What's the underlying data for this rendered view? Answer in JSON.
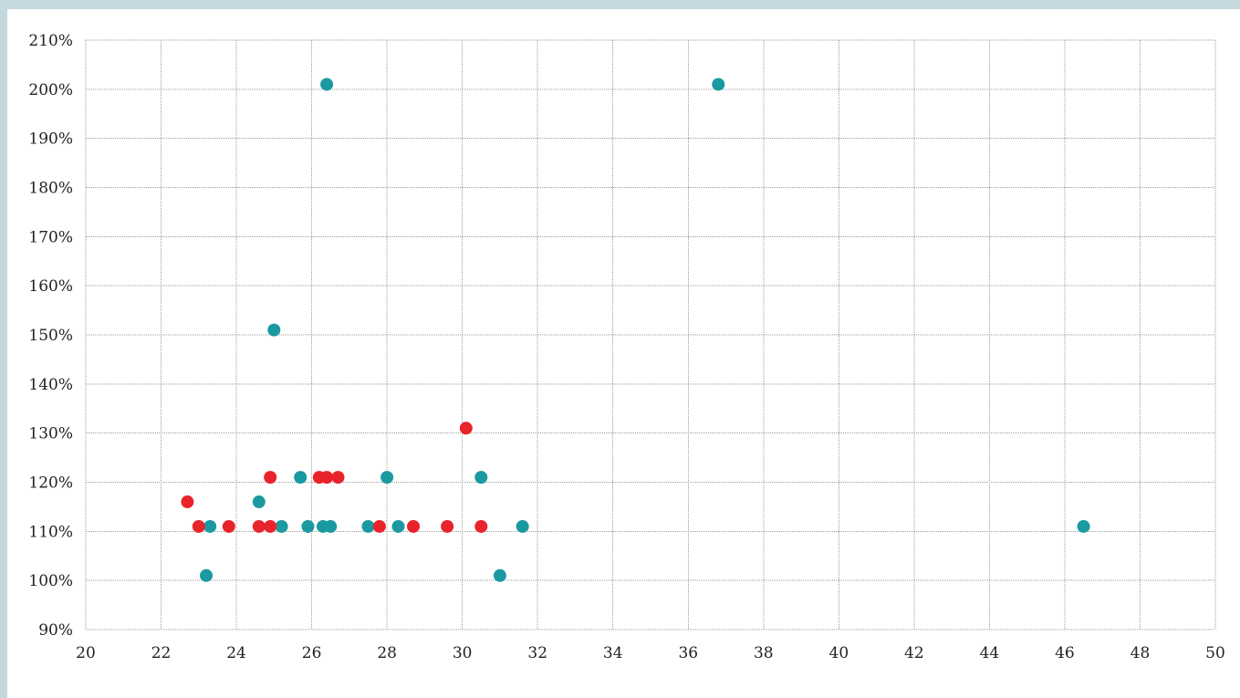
{
  "chart_data": {
    "type": "scatter",
    "title": "",
    "xlabel": "",
    "ylabel": "",
    "xlim": [
      20,
      50
    ],
    "ylim": [
      90,
      210
    ],
    "grid": true,
    "legend": "none",
    "x_ticks": [
      "20",
      "22",
      "24",
      "26",
      "28",
      "30",
      "32",
      "34",
      "36",
      "38",
      "40",
      "42",
      "44",
      "46",
      "48",
      "50"
    ],
    "y_ticks": [
      "90%",
      "100%",
      "110%",
      "120%",
      "130%",
      "140%",
      "150%",
      "160%",
      "170%",
      "180%",
      "190%",
      "200%",
      "210%"
    ],
    "series": [
      {
        "color": "#1a9aa0",
        "points": [
          [
            26.4,
            201
          ],
          [
            36.8,
            201
          ],
          [
            25.0,
            151
          ],
          [
            25.7,
            121
          ],
          [
            28.0,
            121
          ],
          [
            30.5,
            121
          ],
          [
            24.6,
            116
          ],
          [
            23.3,
            111
          ],
          [
            25.2,
            111
          ],
          [
            25.9,
            111
          ],
          [
            26.3,
            111
          ],
          [
            26.5,
            111
          ],
          [
            27.5,
            111
          ],
          [
            28.3,
            111
          ],
          [
            31.6,
            111
          ],
          [
            46.5,
            111
          ],
          [
            23.2,
            101
          ],
          [
            31.0,
            101
          ]
        ]
      },
      {
        "color": "#e8232b",
        "points": [
          [
            30.1,
            131
          ],
          [
            24.9,
            121
          ],
          [
            26.2,
            121
          ],
          [
            26.4,
            121
          ],
          [
            26.7,
            121
          ],
          [
            22.7,
            116
          ],
          [
            23.0,
            111
          ],
          [
            23.8,
            111
          ],
          [
            24.6,
            111
          ],
          [
            24.9,
            111
          ],
          [
            27.8,
            111
          ],
          [
            28.7,
            111
          ],
          [
            29.6,
            111
          ],
          [
            30.5,
            111
          ]
        ]
      }
    ]
  }
}
